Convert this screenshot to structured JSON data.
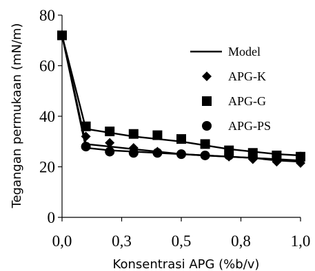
{
  "chart_data": {
    "type": "line",
    "title": "",
    "xlabel": "Konsentrasi APG (%b/v)",
    "ylabel": "Tegangan permukaan (mN/m)",
    "xlim": [
      0,
      1.0
    ],
    "ylim": [
      0,
      80
    ],
    "x_ticks": [
      0,
      0.25,
      0.5,
      0.75,
      1.0
    ],
    "x_tick_labels": [
      "0,0",
      "0,3",
      "0,5",
      "0,8",
      "1,0"
    ],
    "y_ticks": [
      0,
      20,
      40,
      60,
      80
    ],
    "y_tick_labels": [
      "0",
      "20",
      "40",
      "60",
      "80"
    ],
    "grid": false,
    "legend_position": "right",
    "x": [
      0.0,
      0.1,
      0.2,
      0.3,
      0.4,
      0.5,
      0.6,
      0.7,
      0.8,
      0.9,
      1.0
    ],
    "series": [
      {
        "name": "APG-K",
        "marker": "diamond",
        "values": [
          72,
          32,
          29.5,
          27.5,
          26,
          25,
          24.5,
          24,
          23,
          22,
          21.5
        ],
        "model": [
          72,
          29,
          28,
          27,
          26,
          25,
          24.5,
          24,
          23.5,
          22.5,
          22
        ]
      },
      {
        "name": "APG-G",
        "marker": "square",
        "values": [
          72,
          36,
          34,
          33,
          32.5,
          31,
          29,
          26.5,
          25.5,
          24.5,
          24
        ],
        "model": [
          72,
          35,
          33.5,
          32,
          31,
          30,
          28.5,
          27,
          26,
          25,
          24.5
        ]
      },
      {
        "name": "APG-PS",
        "marker": "circle",
        "values": [
          72,
          28,
          26,
          25.5,
          25.5,
          25,
          24.5,
          24.5,
          24,
          24,
          24
        ],
        "model": [
          72,
          27.5,
          26.5,
          26,
          25.5,
          25,
          24.5,
          24,
          23.5,
          23,
          22.5
        ]
      }
    ],
    "model_label": "Model"
  }
}
